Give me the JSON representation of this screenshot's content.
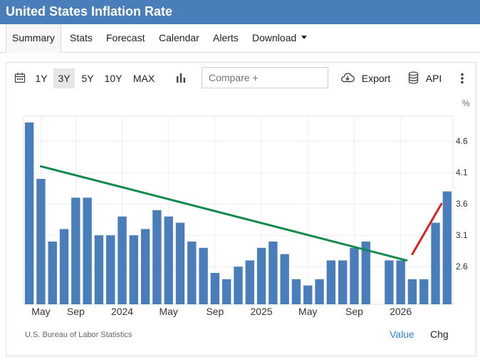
{
  "header": {
    "title": "United States Inflation Rate"
  },
  "nav": {
    "tabs": [
      {
        "label": "Summary",
        "active": true
      },
      {
        "label": "Stats"
      },
      {
        "label": "Forecast"
      },
      {
        "label": "Calendar"
      },
      {
        "label": "Alerts"
      },
      {
        "label": "Download"
      }
    ]
  },
  "toolbar": {
    "ranges": [
      "1Y",
      "3Y",
      "5Y",
      "10Y",
      "MAX"
    ],
    "active_range": "3Y",
    "compare_placeholder": "Compare +",
    "export_label": "Export",
    "api_label": "API"
  },
  "footer": {
    "source": "U.S. Bureau of Labor Statistics",
    "value_toggle": "Value",
    "chg_toggle": "Chg"
  },
  "colors": {
    "bar": "#4a7ebb",
    "trend_long": "#118a4e",
    "trend_recent": "#dd2222",
    "header": "#4a7ebb",
    "link": "#2f80d8"
  },
  "chart_data": {
    "type": "bar",
    "ylabel": "%",
    "y_ticks": [
      2.6,
      3.1,
      3.6,
      4.1,
      4.6
    ],
    "x_tick_labels": [
      "May",
      "Sep",
      "2024",
      "May",
      "Sep",
      "2025",
      "May",
      "Sep",
      "2026"
    ],
    "ylim": [
      2.0,
      5.0
    ],
    "grid": true,
    "series": [
      {
        "values": [
          4.9,
          4.0,
          3.0,
          3.2,
          3.7,
          3.7,
          3.1,
          3.1,
          3.4,
          3.1,
          3.2,
          3.5,
          3.4,
          3.3,
          3.0,
          2.9,
          2.5,
          2.4,
          2.6,
          2.7,
          2.9,
          3.0,
          2.8,
          2.4,
          2.3,
          2.4,
          2.7,
          2.7,
          2.9,
          3.0,
          null,
          2.7,
          2.7,
          2.4,
          2.4,
          3.3,
          3.8
        ]
      }
    ],
    "trend_lines": [
      {
        "color": "long",
        "from": {
          "index": 1,
          "value": 4.2
        },
        "to": {
          "index": 32.5,
          "value": 2.7
        }
      },
      {
        "color": "recent",
        "from": {
          "index": 33,
          "value": 2.8
        },
        "to": {
          "index": 35.5,
          "value": 3.6
        }
      }
    ]
  }
}
